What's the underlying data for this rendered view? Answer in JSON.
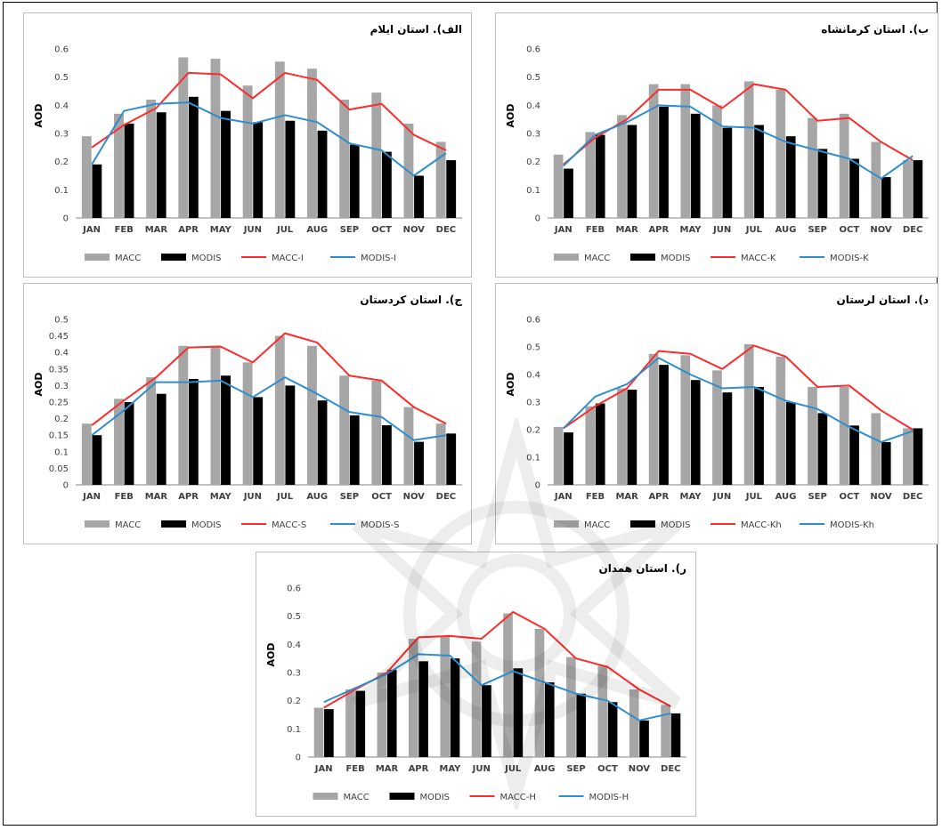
{
  "legend_colors": {
    "MACC": "#a6a6a6",
    "MODIS": "#000000",
    "line_macc": "#ff2b2b",
    "line_modis": "#2e8ece"
  },
  "watermark": {
    "icon": "university-logo-watermark"
  },
  "chart_data": [
    {
      "type": "bar",
      "title": "الف). استان ایلام",
      "ylabel": "AOD",
      "xlabel": "",
      "ylim": [
        0,
        0.6
      ],
      "yticks": [
        "0",
        "0.1",
        "0.2",
        "0.3",
        "0.4",
        "0.5",
        "0.6"
      ],
      "categories": [
        "JAN",
        "FEB",
        "MAR",
        "APR",
        "MAY",
        "JUN",
        "JUL",
        "AUG",
        "SEP",
        "OCT",
        "NOV",
        "DEC"
      ],
      "series": [
        {
          "name": "MACC",
          "kind": "bar",
          "values": [
            0.29,
            0.37,
            0.42,
            0.57,
            0.565,
            0.47,
            0.555,
            0.53,
            0.42,
            0.445,
            0.335,
            0.27
          ]
        },
        {
          "name": "MODIS",
          "kind": "bar",
          "values": [
            0.19,
            0.335,
            0.375,
            0.43,
            0.38,
            0.34,
            0.345,
            0.31,
            0.26,
            0.235,
            0.15,
            0.205
          ]
        },
        {
          "name": "MACC-I",
          "kind": "line",
          "values": [
            0.25,
            0.33,
            0.39,
            0.515,
            0.51,
            0.425,
            0.515,
            0.49,
            0.385,
            0.405,
            0.295,
            0.24
          ]
        },
        {
          "name": "MODIS-I",
          "kind": "line",
          "values": [
            0.19,
            0.38,
            0.405,
            0.41,
            0.355,
            0.335,
            0.365,
            0.34,
            0.265,
            0.24,
            0.15,
            0.23
          ]
        }
      ],
      "legend_position": "bottom"
    },
    {
      "type": "bar",
      "title": "ب). استان کرمانشاه",
      "ylabel": "AOD",
      "xlabel": "",
      "ylim": [
        0,
        0.6
      ],
      "yticks": [
        "0",
        "0.1",
        "0.2",
        "0.3",
        "0.4",
        "0.5",
        "0.6"
      ],
      "categories": [
        "JAN",
        "FEB",
        "MAR",
        "APR",
        "MAY",
        "JUN",
        "JUL",
        "AUG",
        "SEP",
        "OCT",
        "NOV",
        "DEC"
      ],
      "series": [
        {
          "name": "MACC",
          "kind": "bar",
          "values": [
            0.225,
            0.305,
            0.365,
            0.475,
            0.475,
            0.4,
            0.485,
            0.455,
            0.355,
            0.37,
            0.27,
            0.205
          ]
        },
        {
          "name": "MODIS",
          "kind": "bar",
          "values": [
            0.175,
            0.295,
            0.33,
            0.395,
            0.37,
            0.32,
            0.33,
            0.29,
            0.245,
            0.21,
            0.145,
            0.205
          ]
        },
        {
          "name": "MACC-K",
          "kind": "line",
          "values": [
            0.19,
            0.285,
            0.35,
            0.455,
            0.455,
            0.39,
            0.475,
            0.455,
            0.345,
            0.355,
            0.27,
            0.205
          ]
        },
        {
          "name": "MODIS-K",
          "kind": "line",
          "values": [
            0.185,
            0.295,
            0.34,
            0.4,
            0.395,
            0.325,
            0.32,
            0.27,
            0.24,
            0.21,
            0.14,
            0.22
          ]
        }
      ],
      "legend_position": "bottom"
    },
    {
      "type": "bar",
      "title": "ج). استان کردستان",
      "ylabel": "AOD",
      "xlabel": "",
      "ylim": [
        0,
        0.5
      ],
      "yticks": [
        "0",
        "0.05",
        "0.1",
        "0.15",
        "0.2",
        "0.25",
        "0.3",
        "0.35",
        "0.4",
        "0.45",
        "0.5"
      ],
      "categories": [
        "JAN",
        "FEB",
        "MAR",
        "APR",
        "MAY",
        "JUN",
        "JUL",
        "AUG",
        "SEP",
        "OCT",
        "NOV",
        "DEC"
      ],
      "series": [
        {
          "name": "MACC",
          "kind": "bar",
          "values": [
            0.185,
            0.26,
            0.325,
            0.42,
            0.42,
            0.37,
            0.45,
            0.42,
            0.33,
            0.315,
            0.235,
            0.185
          ]
        },
        {
          "name": "MODIS",
          "kind": "bar",
          "values": [
            0.15,
            0.25,
            0.275,
            0.32,
            0.33,
            0.265,
            0.3,
            0.255,
            0.21,
            0.18,
            0.13,
            0.155
          ]
        },
        {
          "name": "MACC-S",
          "kind": "line",
          "values": [
            0.18,
            0.255,
            0.325,
            0.415,
            0.418,
            0.37,
            0.458,
            0.43,
            0.33,
            0.315,
            0.235,
            0.185
          ]
        },
        {
          "name": "MODIS-S",
          "kind": "line",
          "values": [
            0.15,
            0.225,
            0.31,
            0.31,
            0.315,
            0.265,
            0.325,
            0.275,
            0.22,
            0.205,
            0.135,
            0.15
          ]
        }
      ],
      "legend_position": "bottom"
    },
    {
      "type": "bar",
      "title": "د). استان لرستان",
      "ylabel": "AOD",
      "xlabel": "",
      "ylim": [
        0,
        0.6
      ],
      "yticks": [
        "0",
        "0.1",
        "0.2",
        "0.3",
        "0.4",
        "0.5",
        "0.6"
      ],
      "categories": [
        "JAN",
        "FEB",
        "MAR",
        "APR",
        "MAY",
        "JUN",
        "JUL",
        "AUG",
        "SEP",
        "OCT",
        "NOV",
        "DEC"
      ],
      "series": [
        {
          "name": "MACC",
          "kind": "bar",
          "values": [
            0.21,
            0.285,
            0.35,
            0.475,
            0.47,
            0.415,
            0.51,
            0.465,
            0.355,
            0.355,
            0.26,
            0.205
          ]
        },
        {
          "name": "MODIS",
          "kind": "bar",
          "values": [
            0.19,
            0.295,
            0.345,
            0.435,
            0.38,
            0.335,
            0.355,
            0.3,
            0.26,
            0.215,
            0.155,
            0.205
          ]
        },
        {
          "name": "MACC-Kh",
          "kind": "line",
          "values": [
            0.205,
            0.285,
            0.35,
            0.485,
            0.475,
            0.42,
            0.505,
            0.465,
            0.355,
            0.36,
            0.27,
            0.2
          ]
        },
        {
          "name": "MODIS-Kh",
          "kind": "line",
          "values": [
            0.205,
            0.32,
            0.365,
            0.46,
            0.4,
            0.35,
            0.355,
            0.305,
            0.275,
            0.21,
            0.155,
            0.195
          ]
        }
      ],
      "legend_position": "bottom"
    },
    {
      "type": "bar",
      "title": "ر). استان همدان",
      "ylabel": "AOD",
      "xlabel": "",
      "ylim": [
        0,
        0.6
      ],
      "yticks": [
        "0",
        "0.1",
        "0.2",
        "0.3",
        "0.4",
        "0.5",
        "0.6"
      ],
      "categories": [
        "JAN",
        "FEB",
        "MAR",
        "APR",
        "MAY",
        "JUN",
        "JUL",
        "AUG",
        "SEP",
        "OCT",
        "NOV",
        "DEC"
      ],
      "series": [
        {
          "name": "MACC",
          "kind": "bar",
          "values": [
            0.175,
            0.24,
            0.3,
            0.42,
            0.43,
            0.41,
            0.51,
            0.455,
            0.355,
            0.325,
            0.24,
            0.185
          ]
        },
        {
          "name": "MODIS",
          "kind": "bar",
          "values": [
            0.17,
            0.235,
            0.31,
            0.34,
            0.35,
            0.255,
            0.315,
            0.265,
            0.225,
            0.195,
            0.13,
            0.155
          ]
        },
        {
          "name": "MACC-H",
          "kind": "line",
          "values": [
            0.175,
            0.24,
            0.3,
            0.425,
            0.43,
            0.42,
            0.515,
            0.455,
            0.35,
            0.32,
            0.24,
            0.18
          ]
        },
        {
          "name": "MODIS-H",
          "kind": "line",
          "values": [
            0.195,
            0.245,
            0.295,
            0.365,
            0.36,
            0.255,
            0.305,
            0.265,
            0.225,
            0.2,
            0.13,
            0.155
          ]
        }
      ],
      "legend_position": "bottom"
    }
  ]
}
